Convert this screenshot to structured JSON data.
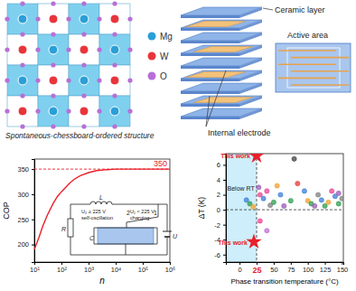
{
  "structure": {
    "legend": [
      {
        "label": "Mg",
        "color": "#2a9fd8"
      },
      {
        "label": "W",
        "color": "#e8353b"
      },
      {
        "label": "O",
        "color": "#b86fd6"
      }
    ],
    "caption": "Spontaneous-chessboard-ordered structure"
  },
  "capacitor": {
    "ceramic_label": "Ceramic layer",
    "active_label": "Active area",
    "electrode_label": "Internal electrode"
  },
  "chart_data": [
    {
      "type": "line",
      "x_label": "n",
      "y_label": "COP",
      "log": "x",
      "xlim": [
        10,
        1000000
      ],
      "xticks": [
        {
          "value": 10,
          "label": "10¹"
        },
        {
          "value": 100,
          "label": "10²"
        },
        {
          "value": 1000,
          "label": "10³"
        },
        {
          "value": 10000,
          "label": "10⁴"
        },
        {
          "value": 100000,
          "label": "10⁵"
        },
        {
          "value": 1000000,
          "label": "10⁶"
        }
      ],
      "ylim": [
        165,
        370
      ],
      "yticks": [
        200,
        250,
        300,
        350
      ],
      "hline": 350,
      "series": [
        {
          "color": "#e8202a",
          "line_style": "solid",
          "x": [
            10,
            15,
            20,
            30,
            50,
            70,
            100,
            200,
            300,
            500,
            1000,
            2000,
            5000,
            10000,
            100000,
            1000000
          ],
          "values": [
            190,
            215,
            235,
            258,
            282,
            295,
            305,
            322,
            330,
            337,
            343,
            347,
            349,
            350,
            350,
            350
          ]
        }
      ],
      "inset": {
        "labels": [
          "L",
          "2",
          "1",
          "R",
          "C",
          "U"
        ],
        "branch_2": [
          "U₂ ≥ 225 V",
          "self-oscillation"
        ],
        "branch_1": [
          "U₁ < 225 V",
          "charging"
        ]
      }
    },
    {
      "type": "scatter",
      "x_label": "Phase transition temperature (°C)",
      "y_label": "ΔT (K)",
      "xlim": [
        -20,
        152
      ],
      "xticks": [
        0,
        25,
        50,
        75,
        100,
        125,
        150
      ],
      "ylim": [
        -7,
        7.5
      ],
      "yticks": [
        -6,
        -4,
        -2,
        0,
        2,
        4,
        6
      ],
      "hline": 0,
      "vline": 25,
      "series": [
        {
          "marker": "circle",
          "x": [
            10,
            15,
            20,
            28,
            30,
            35,
            40,
            45,
            50,
            55,
            60,
            65,
            75,
            80,
            85,
            95,
            100,
            105,
            110,
            115,
            120,
            125,
            130,
            135,
            140,
            145,
            145,
            150,
            40,
            30
          ],
          "values": [
            1.3,
            0.8,
            0.4,
            3,
            2,
            1.5,
            2.5,
            0.6,
            1,
            3.2,
            2,
            0.5,
            1.2,
            6.8,
            3.5,
            2.5,
            1.2,
            0.8,
            0.5,
            2,
            1.3,
            0.5,
            1,
            2.5,
            1.8,
            0.8,
            2.2,
            1.5,
            -2.8,
            -1.5
          ],
          "colors": [
            "#3b7dd8",
            "#2e9e4f",
            "#f0a030",
            "#9b59b6",
            "#e84393",
            "#3b7dd8",
            "#e84393",
            "#808080",
            "#2e9e4f",
            "#f0a030",
            "#3b7dd8",
            "#9b59b6",
            "#2e9e4f",
            "#404040",
            "#e8353b",
            "#3b7dd8",
            "#f0a030",
            "#2e9e4f",
            "#9b59b6",
            "#808080",
            "#3b7dd8",
            "#2e9e4f",
            "#f0a030",
            "#e84393",
            "#3b7dd8",
            "#2e9e4f",
            "#9b59b6",
            "#808080",
            "#b86fd6",
            "#e84393"
          ]
        },
        {
          "marker": "star",
          "color": "#e8202a",
          "x": [
            25,
            21
          ],
          "values": [
            7.2,
            -4.3
          ]
        }
      ],
      "annotations": [
        {
          "text": "This work",
          "x": 25,
          "y": 7.2
        },
        {
          "text": "This work",
          "x": 21,
          "y": -4.3
        },
        {
          "text": "Below RT",
          "x": 2,
          "y": 2.5
        }
      ]
    }
  ]
}
